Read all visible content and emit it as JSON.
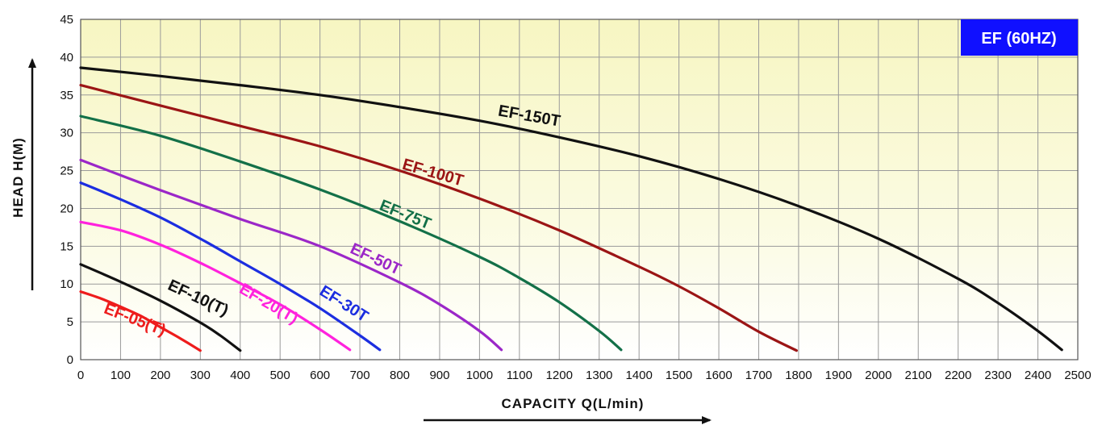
{
  "chart_data": {
    "type": "line",
    "title": "EF (60HZ)",
    "xlabel": "CAPACITY  Q(L/min)",
    "ylabel": "HEAD  H(M)",
    "xlim": [
      0,
      2500
    ],
    "ylim": [
      0,
      45
    ],
    "xticks": [
      0,
      100,
      200,
      300,
      400,
      500,
      600,
      700,
      800,
      900,
      1000,
      1100,
      1200,
      1300,
      1400,
      1500,
      1600,
      1700,
      1800,
      1900,
      2000,
      2100,
      2200,
      2300,
      2400,
      2500
    ],
    "yticks": [
      0,
      5,
      10,
      15,
      20,
      25,
      30,
      35,
      40,
      45
    ],
    "grid": true,
    "series": [
      {
        "name": "EF-05(T)",
        "color": "#ee1c1c",
        "x": [
          0,
          50,
          100,
          150,
          200,
          250,
          300
        ],
        "y": [
          9.0,
          8.1,
          7.0,
          5.8,
          4.3,
          2.8,
          1.2
        ]
      },
      {
        "name": "EF-10(T)",
        "color": "#111111",
        "x": [
          0,
          100,
          200,
          300,
          350,
          400
        ],
        "y": [
          12.6,
          10.3,
          7.8,
          4.9,
          3.2,
          1.2
        ]
      },
      {
        "name": "EF-20(T)",
        "color": "#ff22dd",
        "x": [
          0,
          100,
          200,
          300,
          400,
          500,
          600,
          675
        ],
        "y": [
          18.2,
          17.1,
          15.2,
          12.8,
          10.1,
          7.3,
          4.0,
          1.3
        ]
      },
      {
        "name": "EF-30T",
        "color": "#1c2ee0",
        "x": [
          0,
          100,
          200,
          300,
          400,
          500,
          600,
          700,
          750
        ],
        "y": [
          23.4,
          21.2,
          18.8,
          16.0,
          13.0,
          10.0,
          6.8,
          3.2,
          1.3
        ]
      },
      {
        "name": "EF-50T",
        "color": "#9b27c8",
        "x": [
          0,
          200,
          400,
          600,
          800,
          900,
          1000,
          1055
        ],
        "y": [
          26.4,
          22.4,
          18.6,
          15.0,
          10.2,
          7.3,
          3.8,
          1.3
        ]
      },
      {
        "name": "EF-75T",
        "color": "#137048",
        "x": [
          0,
          200,
          400,
          600,
          800,
          1000,
          1100,
          1200,
          1300,
          1355
        ],
        "y": [
          32.2,
          29.6,
          26.2,
          22.5,
          18.3,
          13.6,
          10.8,
          7.6,
          3.8,
          1.3
        ]
      },
      {
        "name": "EF-100T",
        "color": "#9b1515",
        "x": [
          0,
          200,
          400,
          600,
          800,
          1000,
          1200,
          1400,
          1500,
          1600,
          1700,
          1795
        ],
        "y": [
          36.3,
          33.6,
          30.9,
          28.2,
          25.0,
          21.3,
          17.1,
          12.3,
          9.7,
          6.8,
          3.7,
          1.2
        ]
      },
      {
        "name": "EF-150T",
        "color": "#111111",
        "x": [
          0,
          200,
          400,
          600,
          800,
          1000,
          1200,
          1400,
          1600,
          1800,
          2000,
          2200,
          2300,
          2400,
          2460
        ],
        "y": [
          38.6,
          37.5,
          36.3,
          35.0,
          33.4,
          31.6,
          29.4,
          26.9,
          23.9,
          20.3,
          16.0,
          10.7,
          7.5,
          3.8,
          1.3
        ]
      }
    ],
    "annotations": [
      "EF-150T",
      "EF-100T",
      "EF-75T",
      "EF-50T",
      "EF-30T",
      "EF-20(T)",
      "EF-10(T)",
      "EF-05(T)"
    ]
  }
}
